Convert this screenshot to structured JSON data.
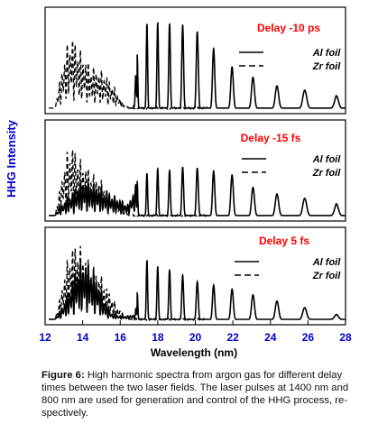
{
  "figure": {
    "ylabel": "HHG Intensity",
    "xlabel": "Wavelength (nm)",
    "xticks": [
      "12",
      "14",
      "16",
      "18",
      "20",
      "22",
      "24",
      "26",
      "28"
    ]
  },
  "caption": {
    "label": "Figure 6:",
    "text": "High harmonic spectra from argon gas for different delay times between the two laser fields. The laser pulses at 1400 nm and 800 nm are used for generation and control of the HHG process, re-spectively."
  },
  "colors": {
    "title": "#ff0000",
    "ylabel": "#0000cc",
    "xticks": "#0000cc",
    "xlabel": "#000000",
    "line": "#000000"
  },
  "chart_data": [
    {
      "type": "line",
      "title": "Delay -10 ps",
      "xlim": [
        12,
        28
      ],
      "ylim": [
        0,
        1
      ],
      "series": [
        {
          "name": "Al foil",
          "style": "solid",
          "x": [
            17.0,
            17.3,
            17.6,
            17.9,
            18.25,
            18.6,
            19.0,
            19.4,
            19.8,
            20.3,
            20.8,
            21.3,
            21.9,
            22.6,
            23.3,
            24.1,
            25.0,
            26.0,
            27.5
          ],
          "y": [
            0.8,
            0.84,
            0.86,
            0.86,
            0.85,
            0.85,
            0.84,
            0.84,
            0.82,
            0.74,
            0.64,
            0.52,
            0.42,
            0.35,
            0.29,
            0.24,
            0.18,
            0.18,
            0.14
          ]
        },
        {
          "name": "Zr foil",
          "style": "dashed",
          "x": [
            12.8,
            13.0,
            13.2,
            13.4,
            13.6,
            13.8,
            14.0,
            14.2,
            14.4,
            14.6,
            14.8,
            15.0,
            15.2,
            15.4,
            15.6,
            15.8,
            16.0,
            16.2
          ],
          "y": [
            0.3,
            0.52,
            0.66,
            0.76,
            0.7,
            0.6,
            0.56,
            0.5,
            0.44,
            0.42,
            0.4,
            0.38,
            0.36,
            0.3,
            0.24,
            0.18,
            0.1,
            0.04
          ]
        }
      ]
    },
    {
      "type": "line",
      "title": "Delay -15 fs",
      "xlim": [
        12,
        28
      ],
      "ylim": [
        0,
        1
      ],
      "series": [
        {
          "name": "Al foil",
          "style": "solid",
          "x": [
            12.8,
            13.2,
            13.6,
            14.0,
            14.4,
            14.8,
            15.2,
            15.6,
            16.0,
            16.4,
            17.0,
            17.3,
            17.6,
            17.9,
            18.25,
            18.6,
            19.0,
            19.4,
            19.8,
            20.3,
            20.8,
            21.3,
            21.9,
            22.6,
            23.3,
            24.1,
            25.0,
            26.0,
            27.5
          ],
          "y": [
            0.1,
            0.2,
            0.3,
            0.38,
            0.36,
            0.32,
            0.26,
            0.22,
            0.18,
            0.12,
            0.42,
            0.44,
            0.46,
            0.5,
            0.5,
            0.48,
            0.5,
            0.52,
            0.52,
            0.5,
            0.48,
            0.46,
            0.44,
            0.34,
            0.28,
            0.24,
            0.2,
            0.18,
            0.14
          ]
        },
        {
          "name": "Zr foil",
          "style": "dashed",
          "x": [
            12.8,
            13.0,
            13.2,
            13.4,
            13.6,
            13.8,
            14.0,
            14.2,
            14.4,
            14.6,
            14.8,
            15.0,
            15.2,
            15.4,
            15.6,
            15.8,
            16.0,
            16.2
          ],
          "y": [
            0.3,
            0.55,
            0.7,
            0.78,
            0.72,
            0.62,
            0.58,
            0.54,
            0.48,
            0.44,
            0.42,
            0.38,
            0.32,
            0.28,
            0.22,
            0.16,
            0.1,
            0.05
          ]
        }
      ]
    },
    {
      "type": "line",
      "title": "Delay 5 fs",
      "xlim": [
        12,
        28
      ],
      "ylim": [
        0,
        1
      ],
      "series": [
        {
          "name": "Al foil",
          "style": "solid",
          "x": [
            12.8,
            13.2,
            13.6,
            14.0,
            14.4,
            14.8,
            15.2,
            15.6,
            16.0,
            16.4,
            16.8,
            17.0,
            17.2,
            17.4,
            17.7,
            18.0,
            18.4,
            18.8,
            19.2,
            19.6,
            20.0,
            20.5,
            21.0,
            21.6,
            22.2,
            22.8,
            23.4,
            24.0,
            24.8,
            25.6,
            26.5,
            27.5
          ],
          "y": [
            0.1,
            0.28,
            0.56,
            0.66,
            0.62,
            0.44,
            0.18,
            0.06,
            0.04,
            0.04,
            0.06,
            0.5,
            0.7,
            0.66,
            0.6,
            0.58,
            0.56,
            0.54,
            0.5,
            0.46,
            0.42,
            0.4,
            0.38,
            0.36,
            0.32,
            0.28,
            0.26,
            0.22,
            0.18,
            0.14,
            0.1,
            0.06
          ]
        },
        {
          "name": "Zr foil",
          "style": "dashed",
          "x": [
            12.8,
            13.0,
            13.2,
            13.4,
            13.6,
            13.8,
            14.0,
            14.2,
            14.4,
            14.6,
            14.8,
            15.0,
            15.2,
            15.4,
            15.6,
            15.8,
            16.0,
            16.2
          ],
          "y": [
            0.25,
            0.5,
            0.68,
            0.82,
            0.86,
            0.84,
            0.78,
            0.72,
            0.66,
            0.6,
            0.54,
            0.48,
            0.4,
            0.32,
            0.24,
            0.16,
            0.1,
            0.05
          ]
        }
      ]
    }
  ]
}
